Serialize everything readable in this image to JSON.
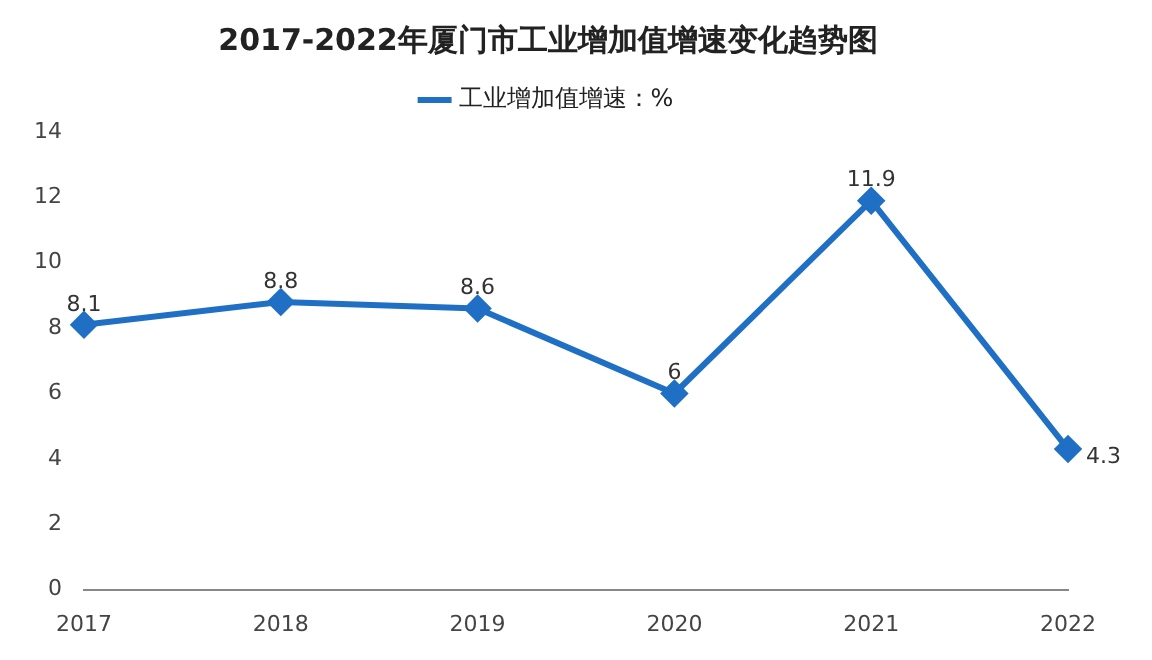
{
  "chart_data": {
    "type": "line",
    "title": "2017-2022年厦门市工业增加值增速变化趋势图",
    "categories": [
      "2017",
      "2018",
      "2019",
      "2020",
      "2021",
      "2022"
    ],
    "series": [
      {
        "name": "工业增加值增速：%",
        "color": "#1f6fc5",
        "values": [
          8.1,
          8.8,
          8.6,
          6,
          11.9,
          4.3
        ]
      }
    ],
    "ylim": [
      0,
      14
    ],
    "yticks": [
      0,
      2,
      4,
      6,
      8,
      10,
      12,
      14
    ],
    "grid": false,
    "legend": "top",
    "marker": "diamond",
    "line_style": "solid",
    "data_labels": true
  }
}
